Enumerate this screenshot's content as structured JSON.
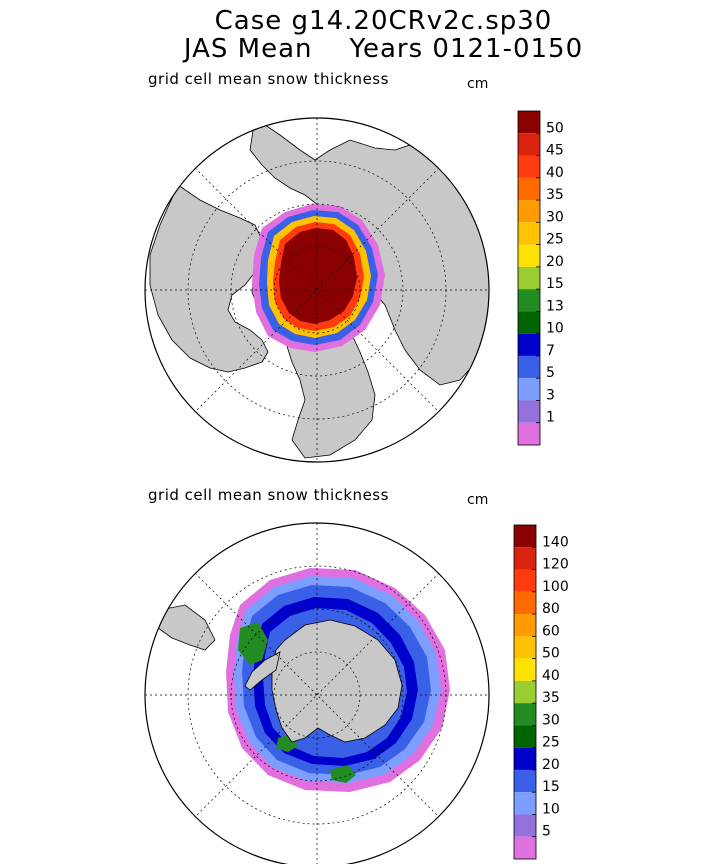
{
  "header": {
    "line1": "Case g14.20CRv2c.sp30",
    "line2": "JAS Mean    Years 0121-0150"
  },
  "north_panel": {
    "label": "grid cell mean snow thickness",
    "unit": "cm",
    "colorbar_labels": [
      "50",
      "45",
      "40",
      "35",
      "30",
      "25",
      "20",
      "15",
      "13",
      "10",
      "7",
      "5",
      "3",
      "1"
    ]
  },
  "south_panel": {
    "label": "grid cell mean snow thickness",
    "unit": "cm",
    "colorbar_labels": [
      "140",
      "120",
      "100",
      "80",
      "60",
      "50",
      "40",
      "35",
      "30",
      "25",
      "20",
      "15",
      "10",
      "5"
    ]
  },
  "colors": {
    "scale": [
      "#8b0000",
      "#d9230f",
      "#ff3b0f",
      "#ff6a00",
      "#ff9a00",
      "#ffc200",
      "#ffe200",
      "#9acd32",
      "#228b22",
      "#006400",
      "#0000cd",
      "#3a60e8",
      "#7b9eff",
      "#9370db",
      "#e070e0"
    ],
    "land": "#c8c8c8",
    "ocean": "#ffffff"
  }
}
